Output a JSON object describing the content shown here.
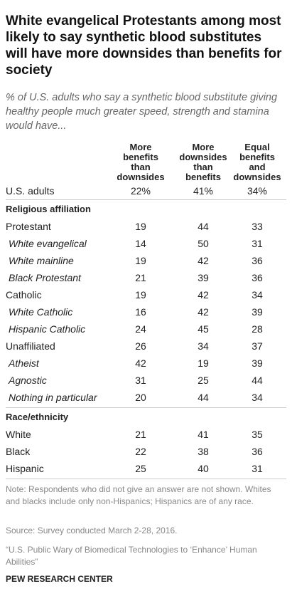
{
  "header": {
    "title": "White evangelical Protestants among most likely to say synthetic blood substitutes will have more downsides than benefits for society",
    "subtitle": "% of U.S. adults who say a synthetic blood substitute giving healthy people much greater speed, strength and stamina would have..."
  },
  "table": {
    "columns": [
      [
        "More",
        "benefits",
        "than",
        "downsides"
      ],
      [
        "More",
        "downsides",
        "than",
        "benefits"
      ],
      [
        "Equal",
        "benefits",
        "and",
        "downsides"
      ]
    ],
    "total": {
      "label": "U.S. adults",
      "values": [
        "22%",
        "41%",
        "34%"
      ]
    },
    "sections": [
      {
        "title": "Religious affiliation",
        "rows": [
          {
            "label": "Protestant",
            "values": [
              19,
              44,
              33
            ]
          },
          {
            "label": "White evangelical",
            "indent": true,
            "values": [
              14,
              50,
              31
            ]
          },
          {
            "label": "White mainline",
            "indent": true,
            "values": [
              19,
              42,
              36
            ]
          },
          {
            "label": "Black Protestant",
            "indent": true,
            "values": [
              21,
              39,
              36
            ]
          },
          {
            "label": "Catholic",
            "values": [
              19,
              42,
              34
            ]
          },
          {
            "label": "White Catholic",
            "indent": true,
            "values": [
              16,
              42,
              39
            ]
          },
          {
            "label": "Hispanic Catholic",
            "indent": true,
            "values": [
              24,
              45,
              28
            ]
          },
          {
            "label": "Unaffiliated",
            "values": [
              26,
              34,
              37
            ]
          },
          {
            "label": "Atheist",
            "indent": true,
            "values": [
              42,
              19,
              39
            ]
          },
          {
            "label": "Agnostic",
            "indent": true,
            "values": [
              31,
              25,
              44
            ]
          },
          {
            "label": "Nothing in particular",
            "indent": true,
            "values": [
              20,
              44,
              34
            ]
          }
        ]
      },
      {
        "title": "Race/ethnicity",
        "rows": [
          {
            "label": "White",
            "values": [
              21,
              41,
              35
            ]
          },
          {
            "label": "Black",
            "values": [
              22,
              38,
              36
            ]
          },
          {
            "label": "Hispanic",
            "values": [
              25,
              40,
              31
            ]
          }
        ]
      }
    ]
  },
  "footer": {
    "note": "Note: Respondents who did not give an answer are not shown. Whites and blacks include only non-Hispanics; Hispanics are of any race.",
    "source": "Source: Survey conducted March 2-28, 2016.",
    "report": "“U.S. Public Wary of Biomedical Technologies to ‘Enhance’ Human Abilities”",
    "org": "PEW RESEARCH CENTER"
  }
}
